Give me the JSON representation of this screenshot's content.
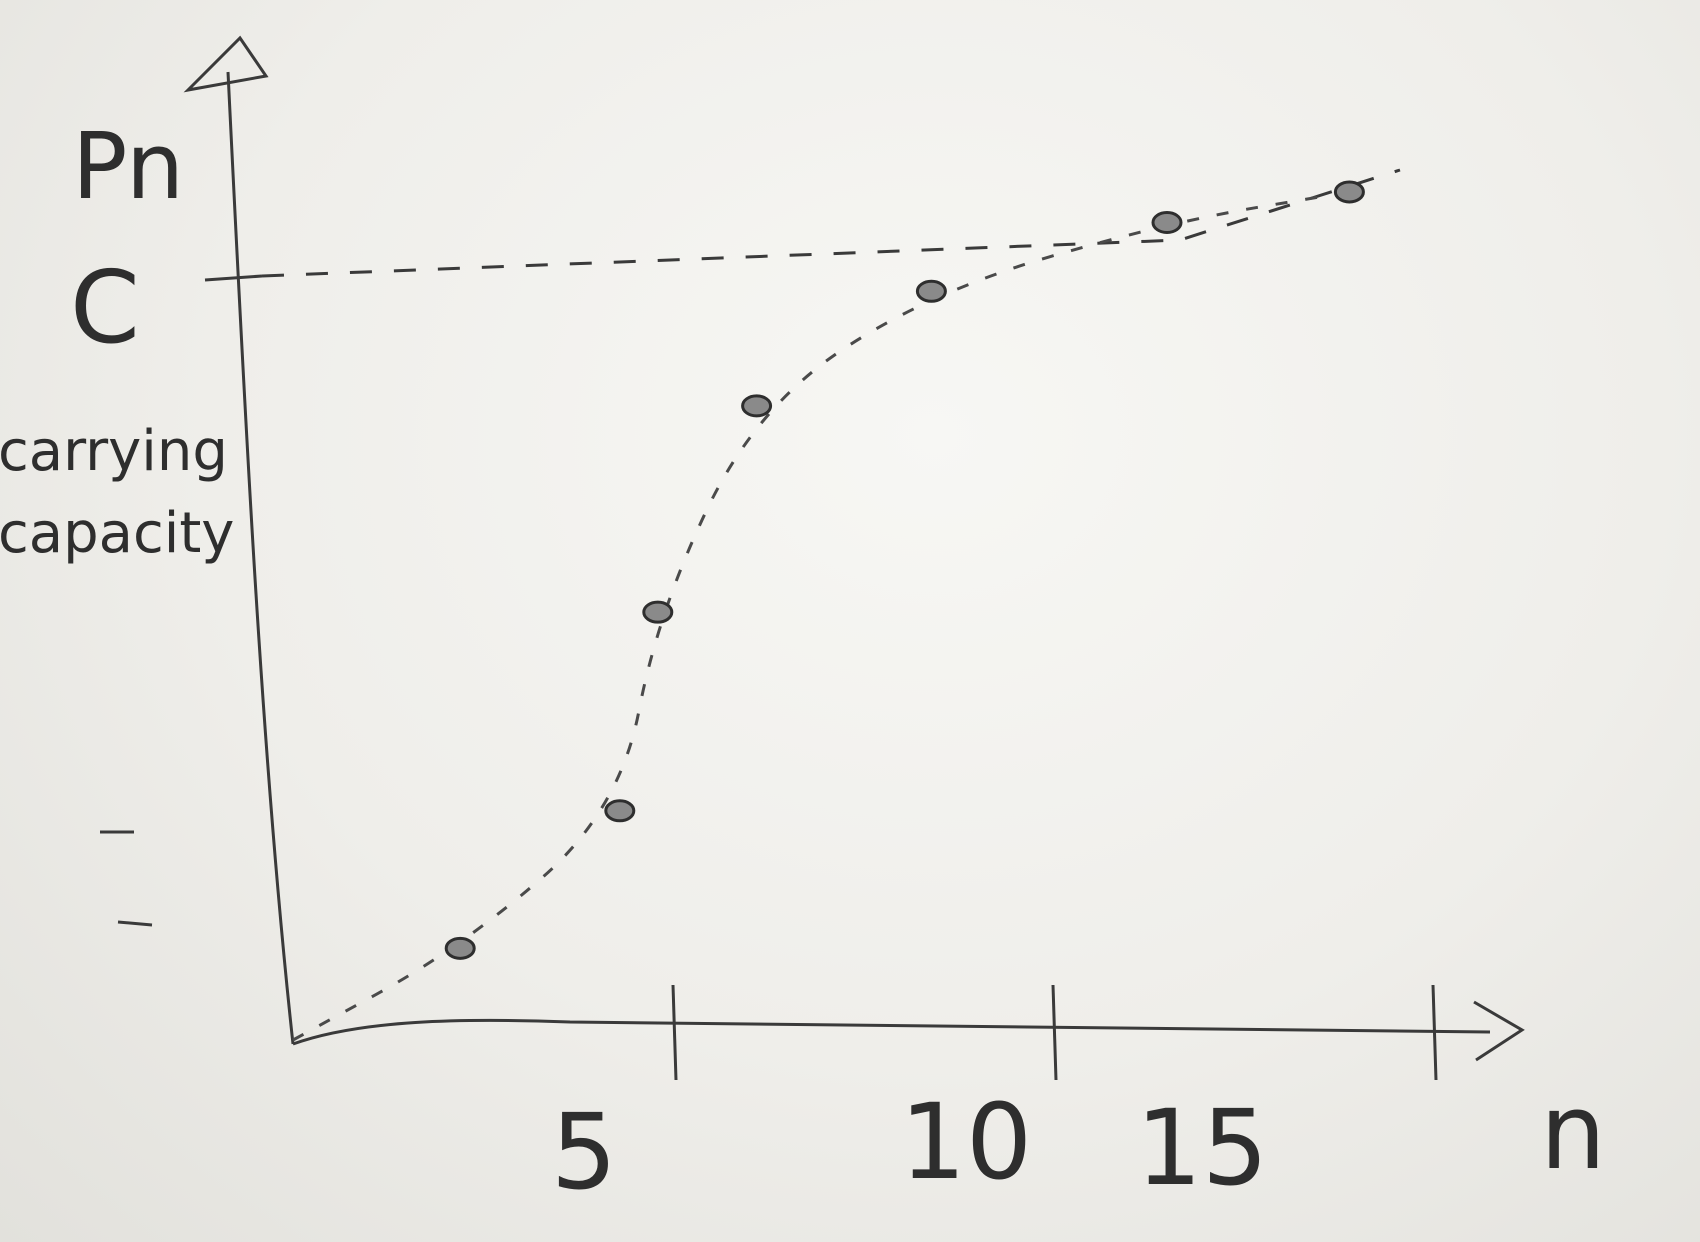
{
  "chart_data": {
    "type": "scatter",
    "title": "",
    "xlabel": "n",
    "ylabel": "Pn",
    "x_ticks": [
      "5",
      "10",
      "15"
    ],
    "y_ticks": [
      {
        "label": "C",
        "value": 1.0
      },
      {
        "label": "",
        "value": 0.29
      },
      {
        "label": "",
        "value": 0.16
      }
    ],
    "asymptote": {
      "label": "C",
      "annotation": [
        "carrying",
        "capacity"
      ],
      "value": 1.0
    },
    "series": [
      {
        "style": "dashed-curve-with-points",
        "points": [
          {
            "x": 0,
            "y": 0.0
          },
          {
            "x": 2.2,
            "y": 0.12
          },
          {
            "x": 4.3,
            "y": 0.3
          },
          {
            "x": 4.8,
            "y": 0.56
          },
          {
            "x": 6.1,
            "y": 0.83
          },
          {
            "x": 8.4,
            "y": 0.98
          },
          {
            "x": 11.5,
            "y": 1.07
          },
          {
            "x": 13.9,
            "y": 1.11
          }
        ]
      }
    ],
    "xlim": [
      0,
      20
    ],
    "ylim": [
      0,
      1.25
    ],
    "grid": false,
    "legend": "none",
    "colors": {
      "ink": "#2e2e2e",
      "board": "#efeeea"
    }
  }
}
